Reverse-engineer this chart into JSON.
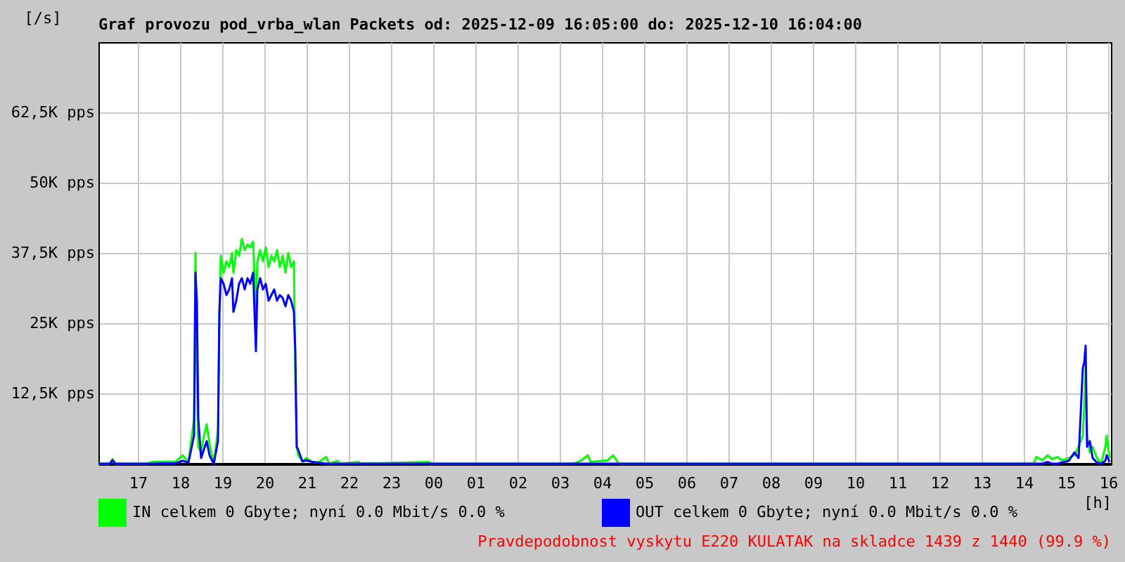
{
  "chart_data": {
    "type": "line",
    "title": "Graf provozu pod_vrba_wlan Packets od: 2025-12-09 16:05:00 do: 2025-12-10 16:04:00",
    "ylabel": "[/s]",
    "xlabel": "[h]",
    "x": [
      "2025-12-09T16:04",
      "2025-12-09T16:20",
      "2025-12-09T16:24",
      "2025-12-09T16:28",
      "2025-12-09T17:14",
      "2025-12-09T17:20",
      "2025-12-09T17:54",
      "2025-12-09T18:04",
      "2025-12-09T18:12",
      "2025-12-09T18:20",
      "2025-12-09T18:22",
      "2025-12-09T18:24",
      "2025-12-09T18:26",
      "2025-12-09T18:30",
      "2025-12-09T18:34",
      "2025-12-09T18:38",
      "2025-12-09T18:42",
      "2025-12-09T18:48",
      "2025-12-09T18:54",
      "2025-12-09T18:56",
      "2025-12-09T18:58",
      "2025-12-09T19:02",
      "2025-12-09T19:06",
      "2025-12-09T19:10",
      "2025-12-09T19:14",
      "2025-12-09T19:16",
      "2025-12-09T19:20",
      "2025-12-09T19:24",
      "2025-12-09T19:28",
      "2025-12-09T19:32",
      "2025-12-09T19:36",
      "2025-12-09T19:40",
      "2025-12-09T19:44",
      "2025-12-09T19:48",
      "2025-12-09T19:50",
      "2025-12-09T19:54",
      "2025-12-09T19:58",
      "2025-12-09T20:02",
      "2025-12-09T20:06",
      "2025-12-09T20:10",
      "2025-12-09T20:14",
      "2025-12-09T20:18",
      "2025-12-09T20:22",
      "2025-12-09T20:26",
      "2025-12-09T20:30",
      "2025-12-09T20:34",
      "2025-12-09T20:38",
      "2025-12-09T20:42",
      "2025-12-09T20:44",
      "2025-12-09T20:46",
      "2025-12-09T20:48",
      "2025-12-09T20:54",
      "2025-12-09T21:00",
      "2025-12-09T21:08",
      "2025-12-09T21:16",
      "2025-12-09T21:28",
      "2025-12-09T21:32",
      "2025-12-09T21:44",
      "2025-12-09T21:48",
      "2025-12-09T22:14",
      "2025-12-09T22:16",
      "2025-12-09T23:54",
      "2025-12-09T23:56",
      "2025-12-10T03:20",
      "2025-12-10T03:30",
      "2025-12-10T03:40",
      "2025-12-10T03:44",
      "2025-12-10T04:08",
      "2025-12-10T04:16",
      "2025-12-10T04:24",
      "2025-12-10T14:14",
      "2025-12-10T14:18",
      "2025-12-10T14:26",
      "2025-12-10T14:34",
      "2025-12-10T14:40",
      "2025-12-10T14:48",
      "2025-12-10T14:54",
      "2025-12-10T15:04",
      "2025-12-10T15:12",
      "2025-12-10T15:18",
      "2025-12-10T15:24",
      "2025-12-10T15:26",
      "2025-12-10T15:28",
      "2025-12-10T15:30",
      "2025-12-10T15:34",
      "2025-12-10T15:38",
      "2025-12-10T15:44",
      "2025-12-10T15:50",
      "2025-12-10T15:56",
      "2025-12-10T15:58",
      "2025-12-10T16:02"
    ],
    "series": [
      {
        "name": "IN celkem 0 Gbyte; nyní   0.0 Mbit/s 0.0 %",
        "color": "#00ff00",
        "values": [
          0,
          0,
          800,
          0,
          0,
          300,
          400,
          1500,
          300,
          8000,
          37500,
          15000,
          3000,
          2000,
          5000,
          7000,
          3500,
          0,
          6000,
          26000,
          37000,
          34000,
          36000,
          35000,
          37500,
          34000,
          38000,
          37000,
          40000,
          38000,
          39000,
          38500,
          39500,
          26000,
          36000,
          38000,
          36000,
          38500,
          35000,
          37000,
          36000,
          38000,
          35000,
          37000,
          34000,
          37500,
          35000,
          36000,
          15000,
          3000,
          1500,
          500,
          1000,
          300,
          200,
          1200,
          0,
          500,
          0,
          300,
          0,
          300,
          0,
          0,
          500,
          1500,
          300,
          600,
          1500,
          0,
          0,
          1200,
          600,
          1500,
          800,
          1200,
          600,
          1000,
          1500,
          3000,
          5000,
          10000,
          17000,
          5000,
          2000,
          3000,
          1000,
          0,
          3000,
          5000,
          1000
        ]
      },
      {
        "name": "OUT celkem 0 Gbyte; nyní   0.0 Mbit/s 0.0 %",
        "color": "#0000ff",
        "values": [
          0,
          0,
          600,
          0,
          0,
          0,
          100,
          500,
          200,
          5000,
          34000,
          29000,
          8000,
          1000,
          2500,
          4000,
          1500,
          0,
          4000,
          27000,
          33000,
          32000,
          30000,
          31000,
          33000,
          27000,
          29000,
          32000,
          33000,
          31000,
          33000,
          32000,
          34000,
          20000,
          31000,
          33000,
          31000,
          32000,
          29000,
          30000,
          31000,
          29000,
          30000,
          29500,
          28000,
          30000,
          29000,
          27000,
          20000,
          3000,
          2500,
          400,
          600,
          300,
          200,
          0,
          0,
          0,
          0,
          0,
          0,
          0,
          0,
          0,
          0,
          0,
          0,
          0,
          0,
          0,
          0,
          0,
          0,
          300,
          0,
          0,
          200,
          500,
          2000,
          1000,
          17000,
          18000,
          21000,
          3000,
          4000,
          1000,
          200,
          0,
          500,
          1500,
          300
        ]
      }
    ],
    "xlim": [
      "2025-12-09T16:04",
      "2025-12-10T16:04"
    ],
    "xticks": [
      {
        "value": "2025-12-09T17:00",
        "label": "17"
      },
      {
        "value": "2025-12-09T18:00",
        "label": "18"
      },
      {
        "value": "2025-12-09T19:00",
        "label": "19"
      },
      {
        "value": "2025-12-09T20:00",
        "label": "20"
      },
      {
        "value": "2025-12-09T21:00",
        "label": "21"
      },
      {
        "value": "2025-12-09T22:00",
        "label": "22"
      },
      {
        "value": "2025-12-09T23:00",
        "label": "23"
      },
      {
        "value": "2025-12-10T00:00",
        "label": "00"
      },
      {
        "value": "2025-12-10T01:00",
        "label": "01"
      },
      {
        "value": "2025-12-10T02:00",
        "label": "02"
      },
      {
        "value": "2025-12-10T03:00",
        "label": "03"
      },
      {
        "value": "2025-12-10T04:00",
        "label": "04"
      },
      {
        "value": "2025-12-10T05:00",
        "label": "05"
      },
      {
        "value": "2025-12-10T06:00",
        "label": "06"
      },
      {
        "value": "2025-12-10T07:00",
        "label": "07"
      },
      {
        "value": "2025-12-10T08:00",
        "label": "08"
      },
      {
        "value": "2025-12-10T09:00",
        "label": "09"
      },
      {
        "value": "2025-12-10T10:00",
        "label": "10"
      },
      {
        "value": "2025-12-10T11:00",
        "label": "11"
      },
      {
        "value": "2025-12-10T12:00",
        "label": "12"
      },
      {
        "value": "2025-12-10T13:00",
        "label": "13"
      },
      {
        "value": "2025-12-10T14:00",
        "label": "14"
      },
      {
        "value": "2025-12-10T15:00",
        "label": "15"
      },
      {
        "value": "2025-12-10T16:00",
        "label": "16"
      }
    ],
    "ylim": [
      0,
      75000
    ],
    "yticks": [
      {
        "value": 12500,
        "label": "12,5K pps"
      },
      {
        "value": 25000,
        "label": "25K pps"
      },
      {
        "value": 37500,
        "label": "37,5K pps"
      },
      {
        "value": 50000,
        "label": "50K pps"
      },
      {
        "value": 62500,
        "label": "62,5K pps"
      }
    ],
    "grid": true,
    "legend": "bottom",
    "annotations": [
      "Pravdepodobnost vyskytu E220 KULATAK na skladce 1439 z 1440 (99.9 %)"
    ]
  }
}
